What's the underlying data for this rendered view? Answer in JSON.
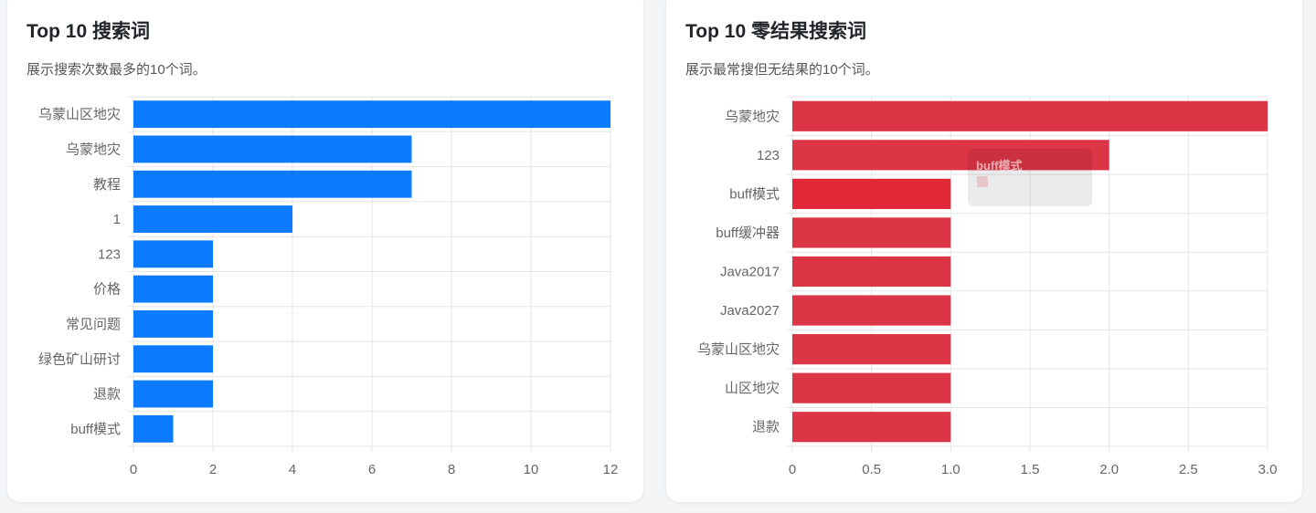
{
  "cards": [
    {
      "title": "Top 10 搜索词",
      "description": "展示搜索次数最多的10个词。"
    },
    {
      "title": "Top 10 零结果搜索词",
      "description": "展示最常搜但无结果的10个词。"
    }
  ],
  "tooltip": {
    "title": "buff模式"
  },
  "colors": {
    "left_bar": "#0d7bff",
    "right_bar": "#dc3545",
    "right_bar_hover": "#e02838"
  },
  "chart_data": [
    {
      "type": "bar",
      "orientation": "horizontal",
      "categories": [
        "乌蒙山区地灾",
        "乌蒙地灾",
        "教程",
        "1",
        "123",
        "价格",
        "常见问题",
        "绿色矿山研讨",
        "退款",
        "buff模式"
      ],
      "values": [
        12,
        7,
        7,
        4,
        2,
        2,
        2,
        2,
        2,
        1
      ],
      "xlim": [
        0,
        12
      ],
      "xticks": [
        "0",
        "2",
        "4",
        "6",
        "8",
        "10",
        "12"
      ],
      "grid": true
    },
    {
      "type": "bar",
      "orientation": "horizontal",
      "categories": [
        "乌蒙地灾",
        "123",
        "buff模式",
        "buff缓冲器",
        "Java2017",
        "Java2027",
        "乌蒙山区地灾",
        "山区地灾",
        "退款"
      ],
      "values": [
        3,
        2,
        1,
        1,
        1,
        1,
        1,
        1,
        1
      ],
      "xlim": [
        0,
        3
      ],
      "xticks": [
        "0",
        "0.5",
        "1.0",
        "1.5",
        "2.0",
        "2.5",
        "3.0"
      ],
      "grid": true,
      "highlighted_category": "buff模式"
    }
  ]
}
